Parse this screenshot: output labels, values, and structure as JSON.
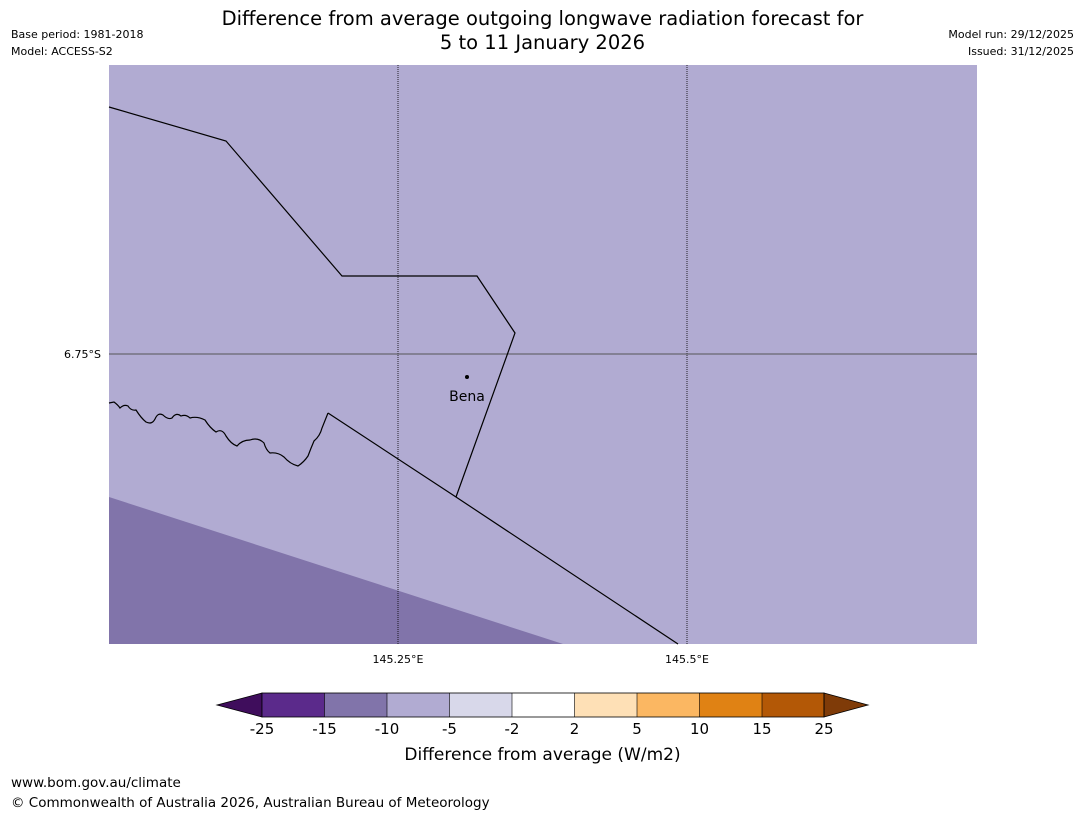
{
  "header": {
    "title_line1": "Difference from average outgoing longwave radiation forecast for",
    "title_line2": "5 to 11 January 2026",
    "base_period": "Base period: 1981-2018",
    "model": "Model: ACCESS-S2",
    "model_run": "Model run: 29/12/2025",
    "issued": "Issued: 31/12/2025"
  },
  "map": {
    "background_color": "#b1abd2",
    "anomaly_region_color": "#8174aa",
    "lat_labels": [
      "6.75°S"
    ],
    "lon_labels": [
      "145.25°E",
      "145.5°E"
    ],
    "place_label": "Bena"
  },
  "colorbar": {
    "ticks": [
      "-25",
      "-15",
      "-10",
      "-5",
      "-2",
      "2",
      "5",
      "10",
      "15",
      "25"
    ],
    "colors": [
      "#3f0d5c",
      "#5b2a8b",
      "#8174aa",
      "#b1abd2",
      "#d8d8ea",
      "#ffffff",
      "#fee0b6",
      "#fbb762",
      "#e08214",
      "#b35806",
      "#7f3b08"
    ],
    "label": "Difference from average (W/m2)"
  },
  "footer": {
    "url": "www.bom.gov.au/climate",
    "copyright": "© Commonwealth of Australia 2026, Australian Bureau of Meteorology"
  }
}
